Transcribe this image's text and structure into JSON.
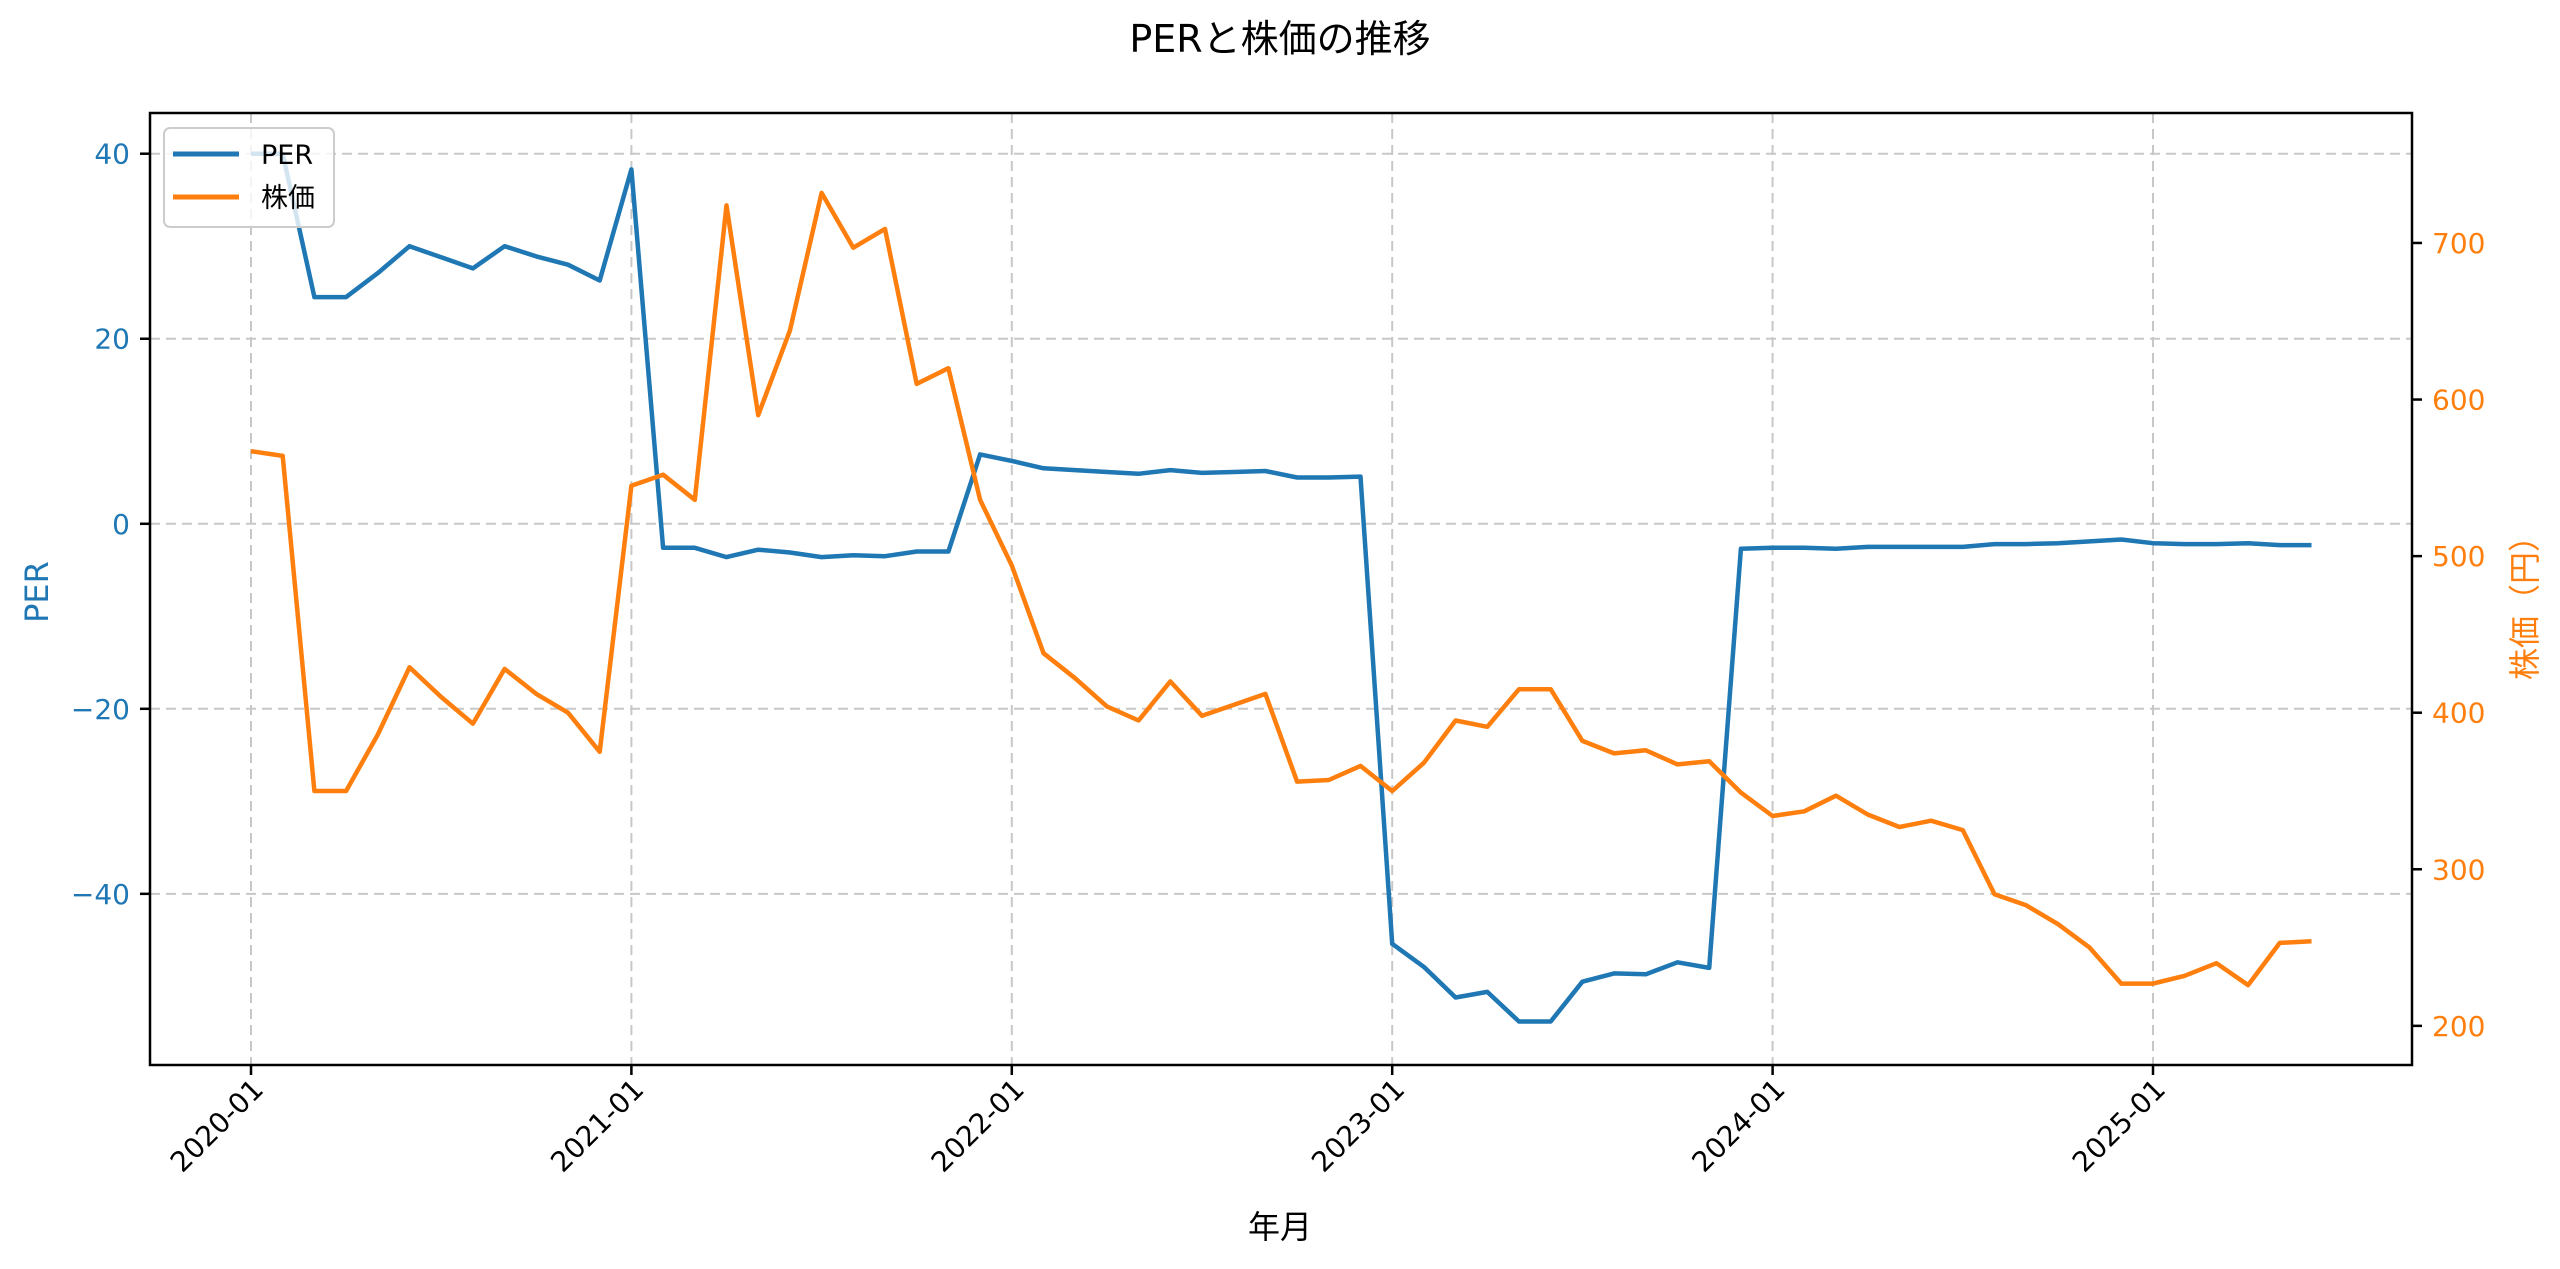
{
  "chart_data": {
    "type": "line",
    "title": "PERと株価の推移",
    "xlabel": "年月",
    "ylabel_left": "PER",
    "ylabel_right": "株価（円）",
    "x_tick_labels": [
      "2020-01",
      "2021-01",
      "2022-01",
      "2023-01",
      "2024-01",
      "2025-01"
    ],
    "y_left_ticks": [
      40,
      20,
      0,
      -20,
      -40
    ],
    "y_right_ticks": [
      700,
      600,
      500,
      400,
      300,
      200
    ],
    "ylim_left": [
      -58.5,
      44.4
    ],
    "ylim_right": [
      175,
      783
    ],
    "grid": true,
    "legend_position": "upper left",
    "x": [
      "2020-01",
      "2020-02",
      "2020-03",
      "2020-04",
      "2020-05",
      "2020-06",
      "2020-07",
      "2020-08",
      "2020-09",
      "2020-10",
      "2020-11",
      "2020-12",
      "2021-01",
      "2021-02",
      "2021-03",
      "2021-04",
      "2021-05",
      "2021-06",
      "2021-07",
      "2021-08",
      "2021-09",
      "2021-10",
      "2021-11",
      "2021-12",
      "2022-01",
      "2022-02",
      "2022-03",
      "2022-04",
      "2022-05",
      "2022-06",
      "2022-07",
      "2022-08",
      "2022-09",
      "2022-10",
      "2022-11",
      "2022-12",
      "2023-01",
      "2023-02",
      "2023-03",
      "2023-04",
      "2023-05",
      "2023-06",
      "2023-07",
      "2023-08",
      "2023-09",
      "2023-10",
      "2023-11",
      "2023-12",
      "2024-01",
      "2024-02",
      "2024-03",
      "2024-04",
      "2024-05",
      "2024-06",
      "2024-07",
      "2024-08",
      "2024-09",
      "2024-10",
      "2024-11",
      "2024-12",
      "2025-01",
      "2025-02",
      "2025-03",
      "2025-04",
      "2025-05",
      "2025-06"
    ],
    "series": [
      {
        "name": "PER",
        "axis": "left",
        "color": "#1f77b4",
        "values": [
          40.0,
          40.0,
          24.5,
          24.5,
          27.1,
          30.0,
          28.8,
          27.6,
          30.0,
          28.9,
          28.0,
          26.3,
          38.3,
          -2.6,
          -2.6,
          -3.6,
          -2.8,
          -3.1,
          -3.6,
          -3.4,
          -3.5,
          -3.0,
          -3.0,
          7.5,
          6.8,
          6.0,
          5.8,
          5.6,
          5.4,
          5.8,
          5.5,
          5.6,
          5.7,
          5.0,
          5.0,
          5.1,
          -45.4,
          -47.9,
          -51.2,
          -50.6,
          -53.8,
          -53.8,
          -49.5,
          -48.6,
          -48.7,
          -47.4,
          -48.0,
          -2.7,
          -2.6,
          -2.6,
          -2.7,
          -2.5,
          -2.5,
          -2.5,
          -2.5,
          -2.2,
          -2.2,
          -2.1,
          -1.9,
          -1.7,
          -2.1,
          -2.2,
          -2.2,
          -2.1,
          -2.3,
          -2.3
        ]
      },
      {
        "name": "株価",
        "axis": "right",
        "color": "#ff7f0e",
        "values": [
          567,
          564,
          350,
          350,
          386,
          429,
          410,
          393,
          428,
          412,
          400,
          375,
          545,
          552,
          536,
          724,
          590,
          644,
          732,
          697,
          709,
          610,
          620,
          536,
          494,
          438,
          422,
          404,
          395,
          420,
          398,
          405,
          412,
          356,
          357,
          366,
          350,
          368,
          395,
          391,
          415,
          415,
          382,
          374,
          376,
          367,
          369,
          349,
          334,
          337,
          347,
          335,
          327,
          331,
          325,
          284,
          277,
          265,
          250,
          227,
          227,
          232,
          240,
          226,
          253,
          254
        ]
      }
    ]
  },
  "legend": {
    "items": [
      {
        "label": "PER",
        "color": "#1f77b4"
      },
      {
        "label": "株価",
        "color": "#ff7f0e"
      }
    ]
  },
  "colors": {
    "per": "#1f77b4",
    "price": "#ff7f0e",
    "axis": "#000000",
    "grid": "#c8c8c8"
  }
}
